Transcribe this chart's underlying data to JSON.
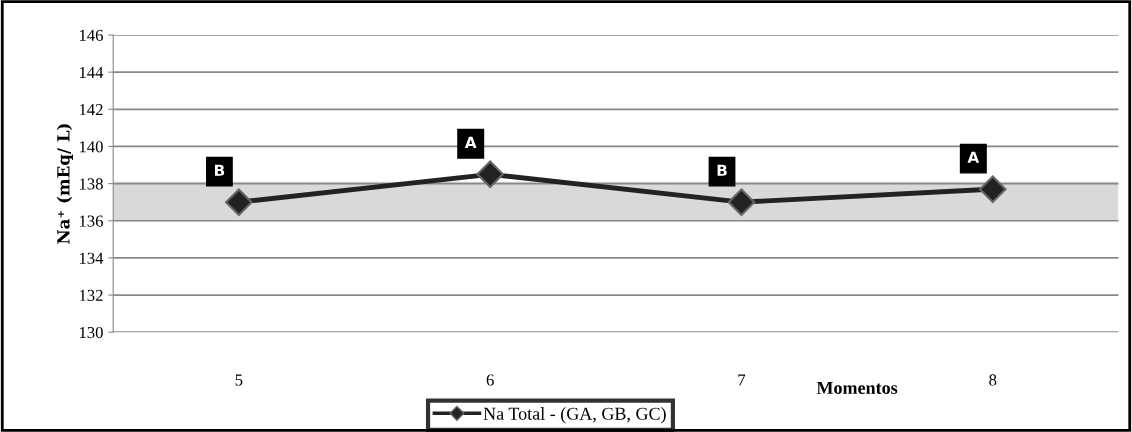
{
  "chart_data": {
    "type": "line",
    "categories": [
      "5",
      "6",
      "7",
      "8"
    ],
    "series": [
      {
        "name": "Na Total - (GA, GB, GC)",
        "color": "#222222",
        "values": [
          137.0,
          138.5,
          137.0,
          137.7
        ]
      }
    ],
    "ylabel": "Na⁺ (mEq/ L)",
    "xlabel": "Momentos",
    "ylim": [
      130,
      146
    ],
    "yticks": [
      130,
      132,
      134,
      136,
      138,
      140,
      142,
      144,
      146
    ],
    "bands": [
      {
        "axis": "y",
        "from": 136,
        "to": 138.1,
        "color": "#d9d9d9"
      }
    ],
    "annotations": [
      {
        "text": "B",
        "x": "5",
        "y": 137.0
      },
      {
        "text": "A",
        "x": "6",
        "y": 138.5
      },
      {
        "text": "B",
        "x": "7",
        "y": 137.0
      },
      {
        "text": "A",
        "x": "8",
        "y": 137.7
      }
    ],
    "grid": "y",
    "legend": "bottom",
    "marker": "diamond",
    "line_style": "solid"
  }
}
